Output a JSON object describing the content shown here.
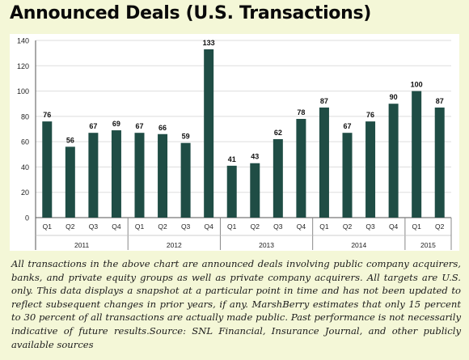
{
  "title": "Announced Deals (U.S. Transactions)",
  "caption": "All transactions in the above chart are announced deals involving public company acquirers, banks, and private equity groups as well as private company acquirers. All targets are U.S. only. This data displays a snapshot at a particular point in time and has not been updated to reflect subsequent changes in prior years, if any. MarshBerry estimates that only 15 percent to 30 percent of all transactions are actually made public. Past performance is not necessarily indicative of future results.Source: SNL Financial, Insurance Journal, and other publicly available sources",
  "colors": {
    "bar": "#1f4d45",
    "background": "#f4f7d7",
    "panel": "#ffffff",
    "grid": "#dddddd"
  },
  "chart_data": {
    "type": "bar",
    "title": "",
    "xlabel": "",
    "ylabel": "",
    "ylim": [
      0,
      140
    ],
    "yticks": [
      0,
      20,
      40,
      60,
      80,
      100,
      120,
      140
    ],
    "grid": true,
    "categories": [
      "Q1",
      "Q2",
      "Q3",
      "Q4",
      "Q1",
      "Q2",
      "Q3",
      "Q4",
      "Q1",
      "Q2",
      "Q3",
      "Q4",
      "Q1",
      "Q2",
      "Q3",
      "Q4",
      "Q1",
      "Q2"
    ],
    "values": [
      76,
      56,
      67,
      69,
      67,
      66,
      59,
      133,
      41,
      43,
      62,
      78,
      87,
      67,
      76,
      90,
      100,
      87
    ],
    "groups": [
      {
        "label": "2011",
        "count": 4
      },
      {
        "label": "2012",
        "count": 4
      },
      {
        "label": "2013",
        "count": 4
      },
      {
        "label": "2014",
        "count": 4
      },
      {
        "label": "2015",
        "count": 2
      }
    ]
  }
}
